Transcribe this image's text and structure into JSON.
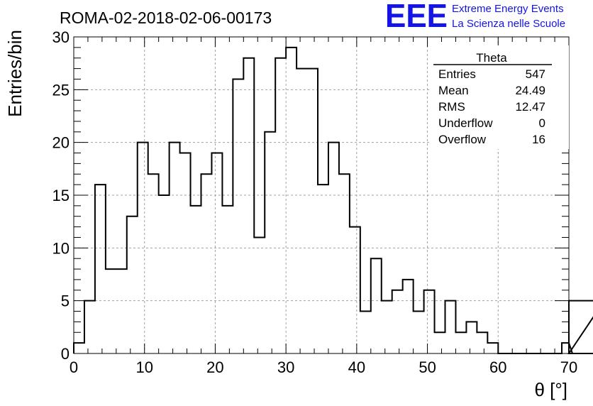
{
  "chart_data": {
    "type": "bar",
    "title": "ROMA-02-2018-02-06-00173",
    "xlabel": "θ [°]",
    "ylabel": "Entries/bin",
    "xlim": [
      0,
      70
    ],
    "ylim": [
      0,
      30
    ],
    "x_ticks": [
      "0",
      "10",
      "20",
      "30",
      "40",
      "50",
      "60",
      "70"
    ],
    "y_ticks": [
      "0",
      "5",
      "10",
      "15",
      "20",
      "25",
      "30"
    ],
    "grid": true,
    "bin_width": 1.5,
    "values": [
      1,
      5,
      16,
      8,
      8,
      13,
      20,
      17,
      15,
      20,
      19,
      14,
      17,
      19,
      14,
      26,
      28,
      11,
      21,
      28,
      29,
      27,
      27,
      16,
      20,
      17,
      12,
      4,
      9,
      5,
      6,
      7,
      4,
      6,
      2,
      5,
      2,
      3,
      2,
      1,
      0,
      0,
      0,
      0,
      0,
      0,
      1,
      0,
      0,
      0,
      5
    ],
    "stats_box": {
      "name": "Theta",
      "rows": [
        {
          "label": "Entries",
          "value": "547"
        },
        {
          "label": "Mean",
          "value": "24.49"
        },
        {
          "label": "RMS",
          "value": "12.47"
        },
        {
          "label": "Underflow",
          "value": "0"
        },
        {
          "label": "Overflow",
          "value": "16"
        }
      ]
    }
  },
  "logo": {
    "mark": "EEE",
    "line1": "Extreme Energy Events",
    "line2": "La Scienza nelle Scuole",
    "color": "#1414e6"
  },
  "colors": {
    "histogram": "#000000",
    "grid": "#a0a0a0",
    "logo": "#1414e6"
  }
}
